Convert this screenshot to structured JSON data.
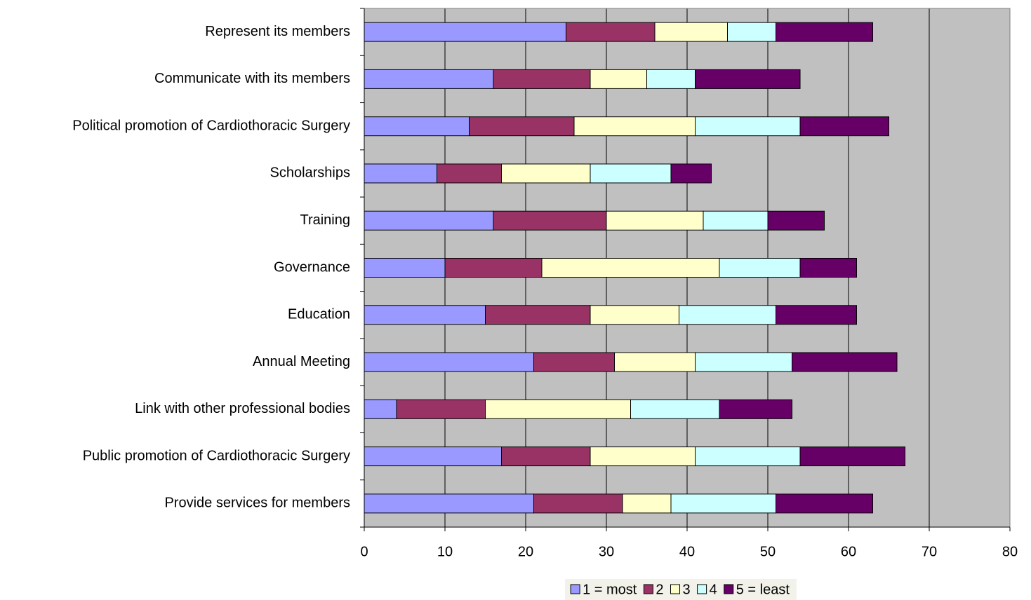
{
  "chart_data": {
    "type": "stacked-bar-horizontal",
    "categories": [
      "Represent its members",
      "Communicate with its members",
      "Political promotion of Cardiothoracic Surgery",
      "Scholarships",
      "Training",
      "Governance",
      "Education",
      "Annual Meeting",
      "Link with other professional bodies",
      "Public promotion of Cardiothoracic Surgery",
      "Provide services for members"
    ],
    "series": [
      {
        "name": "1 = most",
        "color": "#9999ff",
        "values": [
          25,
          16,
          13,
          9,
          16,
          10,
          15,
          21,
          4,
          17,
          21
        ]
      },
      {
        "name": "2",
        "color": "#993366",
        "values": [
          11,
          12,
          13,
          8,
          14,
          12,
          13,
          10,
          11,
          11,
          11
        ]
      },
      {
        "name": "3",
        "color": "#ffffcc",
        "values": [
          9,
          7,
          15,
          11,
          12,
          22,
          11,
          10,
          18,
          13,
          6
        ]
      },
      {
        "name": "4",
        "color": "#ccffff",
        "values": [
          6,
          6,
          13,
          10,
          8,
          10,
          12,
          12,
          11,
          13,
          13
        ]
      },
      {
        "name": "5 = least",
        "color": "#660066",
        "values": [
          12,
          13,
          11,
          5,
          7,
          7,
          10,
          13,
          9,
          13,
          12
        ]
      }
    ],
    "xlim": [
      0,
      80
    ],
    "xticks": [
      0,
      10,
      20,
      30,
      40,
      50,
      60,
      70,
      80
    ],
    "grid": true,
    "legend": "bottom"
  }
}
